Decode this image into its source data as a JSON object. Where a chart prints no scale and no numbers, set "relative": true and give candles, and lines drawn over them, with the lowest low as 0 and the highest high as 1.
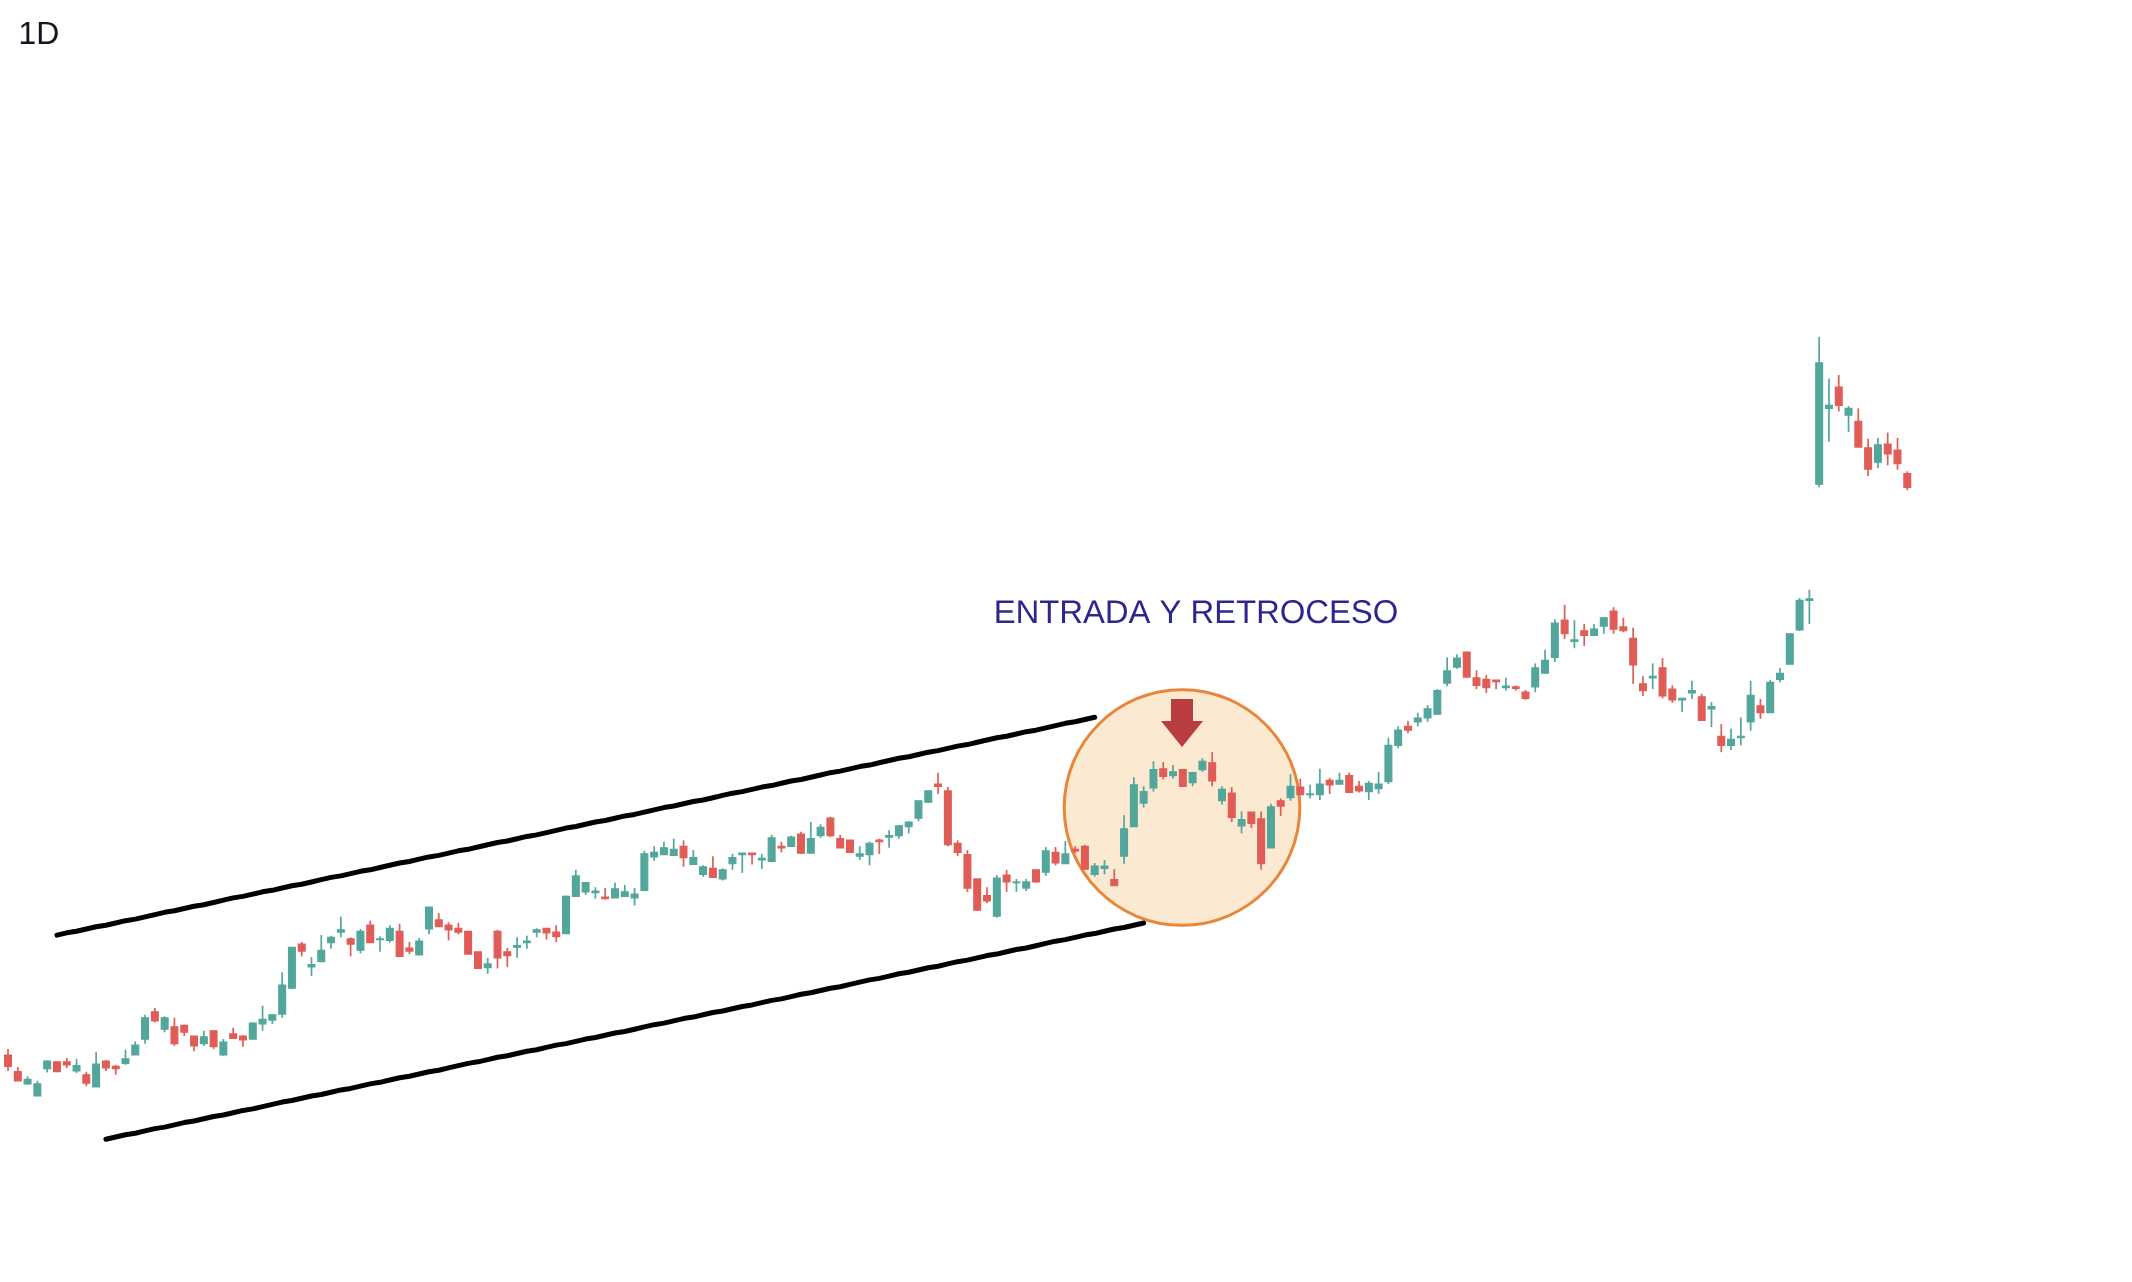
{
  "chart_data": {
    "type": "candlestick",
    "title": "1D",
    "relative": true,
    "categories": [
      null,
      null,
      null,
      null,
      null,
      null,
      null,
      null,
      null,
      null,
      null,
      null,
      null,
      null,
      null,
      null,
      null,
      null,
      null,
      null,
      null,
      null,
      null,
      null,
      null,
      null,
      null,
      null,
      null,
      null,
      null,
      null,
      null,
      null,
      null,
      null,
      null,
      null,
      null,
      null,
      null,
      null,
      null,
      null,
      null,
      null,
      null,
      null,
      null,
      null,
      null,
      null,
      null,
      null,
      null,
      null,
      null,
      null,
      null,
      null,
      null,
      null,
      null,
      null,
      null,
      null,
      null,
      null,
      null,
      null,
      null,
      null,
      null,
      null,
      null,
      null,
      null,
      null,
      null,
      null,
      null,
      null,
      null,
      null,
      null,
      null,
      null,
      null,
      null,
      null,
      null,
      null,
      null,
      null,
      null,
      null,
      null,
      null,
      null,
      null,
      null,
      null,
      null,
      null,
      null,
      null,
      null,
      null,
      null,
      null,
      null,
      null,
      null,
      null,
      null,
      null,
      null,
      null,
      null,
      null,
      null,
      null,
      null,
      null,
      null,
      null,
      null,
      null,
      null,
      null,
      null,
      null,
      null,
      null,
      null,
      null,
      null,
      null,
      null,
      null,
      null,
      null,
      null,
      null,
      null,
      null,
      null,
      null,
      null,
      null,
      null,
      null,
      null,
      null,
      null,
      null,
      null,
      null,
      null,
      null,
      null,
      null,
      null,
      null,
      null,
      null,
      null,
      null,
      null,
      null,
      null,
      null,
      null,
      null,
      null,
      null,
      null,
      null,
      null,
      null,
      null,
      null,
      null,
      null,
      null,
      null,
      null,
      null,
      null,
      null,
      null,
      null,
      null,
      null,
      null
    ],
    "ohlc": [
      [
        0.054,
        0.062,
        0.033,
        0.039
      ],
      [
        0.032,
        0.038,
        0.02,
        0.02
      ],
      [
        0.016,
        0.026,
        0.015,
        0.022
      ],
      [
        0.0,
        0.02,
        0.0,
        0.016
      ],
      [
        0.036,
        0.047,
        0.031,
        0.046
      ],
      [
        0.045,
        0.045,
        0.032,
        0.032
      ],
      [
        0.045,
        0.05,
        0.037,
        0.041
      ],
      [
        0.033,
        0.049,
        0.03,
        0.04
      ],
      [
        0.028,
        0.032,
        0.013,
        0.017
      ],
      [
        0.012,
        0.058,
        0.012,
        0.042
      ],
      [
        0.046,
        0.047,
        0.033,
        0.037
      ],
      [
        0.039,
        0.041,
        0.028,
        0.036
      ],
      [
        0.043,
        0.061,
        0.041,
        0.049
      ],
      [
        0.054,
        0.072,
        0.054,
        0.067
      ],
      [
        0.075,
        0.107,
        0.069,
        0.103
      ],
      [
        0.111,
        0.116,
        0.097,
        0.099
      ],
      [
        0.088,
        0.105,
        0.084,
        0.103
      ],
      [
        0.091,
        0.103,
        0.066,
        0.069
      ],
      [
        0.093,
        0.094,
        0.079,
        0.084
      ],
      [
        0.079,
        0.079,
        0.059,
        0.066
      ],
      [
        0.069,
        0.086,
        0.066,
        0.078
      ],
      [
        0.086,
        0.086,
        0.062,
        0.065
      ],
      [
        0.054,
        0.075,
        0.053,
        0.071
      ],
      [
        0.082,
        0.09,
        0.075,
        0.076
      ],
      [
        0.079,
        0.08,
        0.065,
        0.074
      ],
      [
        0.075,
        0.097,
        0.075,
        0.096
      ],
      [
        0.095,
        0.119,
        0.086,
        0.101
      ],
      [
        0.1,
        0.108,
        0.095,
        0.107
      ],
      [
        0.108,
        0.163,
        0.103,
        0.146
      ],
      [
        0.142,
        0.196,
        0.141,
        0.196
      ],
      [
        0.2,
        0.203,
        0.184,
        0.191
      ],
      [
        0.17,
        0.183,
        0.158,
        0.173
      ],
      [
        0.177,
        0.212,
        0.177,
        0.192
      ],
      [
        0.202,
        0.211,
        0.194,
        0.209
      ],
      [
        0.216,
        0.236,
        0.209,
        0.219
      ],
      [
        0.207,
        0.209,
        0.184,
        0.2
      ],
      [
        0.192,
        0.22,
        0.188,
        0.217
      ],
      [
        0.225,
        0.231,
        0.202,
        0.202
      ],
      [
        0.206,
        0.21,
        0.19,
        0.207
      ],
      [
        0.205,
        0.225,
        0.202,
        0.221
      ],
      [
        0.217,
        0.227,
        0.183,
        0.184
      ],
      [
        0.195,
        0.203,
        0.187,
        0.191
      ],
      [
        0.186,
        0.208,
        0.186,
        0.204
      ],
      [
        0.22,
        0.249,
        0.213,
        0.249
      ],
      [
        0.232,
        0.241,
        0.223,
        0.223
      ],
      [
        0.225,
        0.229,
        0.205,
        0.219
      ],
      [
        0.221,
        0.228,
        0.213,
        0.216
      ],
      [
        0.217,
        0.217,
        0.187,
        0.187
      ],
      [
        0.19,
        0.19,
        0.168,
        0.168
      ],
      [
        0.169,
        0.182,
        0.161,
        0.174
      ],
      [
        0.217,
        0.219,
        0.168,
        0.182
      ],
      [
        0.19,
        0.195,
        0.17,
        0.185
      ],
      [
        0.196,
        0.209,
        0.182,
        0.198
      ],
      [
        0.202,
        0.211,
        0.194,
        0.204
      ],
      [
        0.216,
        0.221,
        0.209,
        0.219
      ],
      [
        0.221,
        0.221,
        0.206,
        0.215
      ],
      [
        0.216,
        0.225,
        0.203,
        0.21
      ],
      [
        0.214,
        0.264,
        0.214,
        0.263
      ],
      [
        0.263,
        0.298,
        0.263,
        0.29
      ],
      [
        0.269,
        0.281,
        0.265,
        0.281
      ],
      [
        0.268,
        0.275,
        0.26,
        0.27
      ],
      [
        0.262,
        0.274,
        0.259,
        0.26
      ],
      [
        0.261,
        0.281,
        0.261,
        0.273
      ],
      [
        0.263,
        0.278,
        0.263,
        0.269
      ],
      [
        0.261,
        0.274,
        0.251,
        0.266
      ],
      [
        0.271,
        0.323,
        0.27,
        0.319
      ],
      [
        0.315,
        0.329,
        0.31,
        0.321
      ],
      [
        0.318,
        0.335,
        0.318,
        0.327
      ],
      [
        0.317,
        0.339,
        0.317,
        0.325
      ],
      [
        0.329,
        0.337,
        0.302,
        0.314
      ],
      [
        0.305,
        0.324,
        0.305,
        0.314
      ],
      [
        0.292,
        0.304,
        0.289,
        0.302
      ],
      [
        0.3,
        0.316,
        0.288,
        0.288
      ],
      [
        0.286,
        0.3,
        0.284,
        0.298
      ],
      [
        0.306,
        0.319,
        0.298,
        0.314
      ],
      [
        0.318,
        0.32,
        0.294,
        0.32
      ],
      [
        0.32,
        0.32,
        0.305,
        0.318
      ],
      [
        0.311,
        0.319,
        0.299,
        0.313
      ],
      [
        0.309,
        0.344,
        0.309,
        0.34
      ],
      [
        0.329,
        0.335,
        0.321,
        0.327
      ],
      [
        0.329,
        0.343,
        0.328,
        0.341
      ],
      [
        0.345,
        0.348,
        0.319,
        0.32
      ],
      [
        0.32,
        0.361,
        0.32,
        0.339
      ],
      [
        0.343,
        0.358,
        0.34,
        0.354
      ],
      [
        0.366,
        0.368,
        0.341,
        0.343
      ],
      [
        0.339,
        0.344,
        0.327,
        0.327
      ],
      [
        0.337,
        0.337,
        0.32,
        0.321
      ],
      [
        0.316,
        0.329,
        0.311,
        0.319
      ],
      [
        0.318,
        0.335,
        0.304,
        0.333
      ],
      [
        0.337,
        0.339,
        0.319,
        0.335
      ],
      [
        0.341,
        0.35,
        0.327,
        0.343
      ],
      [
        0.343,
        0.357,
        0.339,
        0.356
      ],
      [
        0.355,
        0.362,
        0.346,
        0.361
      ],
      [
        0.366,
        0.389,
        0.362,
        0.389
      ],
      [
        0.387,
        0.402,
        0.386,
        0.402
      ],
      [
        0.411,
        0.426,
        0.398,
        0.408
      ],
      [
        0.402,
        0.407,
        0.329,
        0.331
      ],
      [
        0.333,
        0.337,
        0.316,
        0.321
      ],
      [
        0.318,
        0.324,
        0.269,
        0.274
      ],
      [
        0.286,
        0.286,
        0.244,
        0.245
      ],
      [
        0.264,
        0.275,
        0.254,
        0.257
      ],
      [
        0.237,
        0.291,
        0.235,
        0.287
      ],
      [
        0.291,
        0.298,
        0.269,
        0.282
      ],
      [
        0.281,
        0.286,
        0.269,
        0.282
      ],
      [
        0.274,
        0.286,
        0.27,
        0.282
      ],
      [
        0.298,
        0.298,
        0.281,
        0.282
      ],
      [
        0.295,
        0.328,
        0.29,
        0.323
      ],
      [
        0.321,
        0.328,
        0.304,
        0.307
      ],
      [
        0.306,
        0.336,
        0.306,
        0.319
      ],
      [
        0.325,
        0.329,
        0.32,
        0.323
      ],
      [
        0.329,
        0.331,
        0.298,
        0.299
      ],
      [
        0.292,
        0.307,
        0.289,
        0.303
      ],
      [
        0.3,
        0.311,
        0.292,
        0.303
      ],
      [
        0.285,
        0.299,
        0.277,
        0.277
      ],
      [
        0.316,
        0.37,
        0.306,
        0.352
      ],
      [
        0.355,
        0.42,
        0.355,
        0.41
      ],
      [
        0.386,
        0.408,
        0.38,
        0.401
      ],
      [
        0.406,
        0.441,
        0.401,
        0.43
      ],
      [
        0.431,
        0.44,
        0.417,
        0.421
      ],
      [
        0.422,
        0.436,
        0.418,
        0.427
      ],
      [
        0.43,
        0.431,
        0.408,
        0.408
      ],
      [
        0.413,
        0.427,
        0.408,
        0.426
      ],
      [
        0.43,
        0.445,
        0.427,
        0.441
      ],
      [
        0.439,
        0.453,
        0.408,
        0.415
      ],
      [
        0.389,
        0.408,
        0.384,
        0.404
      ],
      [
        0.399,
        0.407,
        0.361,
        0.367
      ],
      [
        0.356,
        0.375,
        0.346,
        0.364
      ],
      [
        0.374,
        0.374,
        0.353,
        0.359
      ],
      [
        0.365,
        0.375,
        0.298,
        0.306
      ],
      [
        0.327,
        0.385,
        0.327,
        0.381
      ],
      [
        0.389,
        0.392,
        0.369,
        0.382
      ],
      [
        0.393,
        0.424,
        0.389,
        0.408
      ],
      [
        0.407,
        0.418,
        0.397,
        0.397
      ],
      [
        0.397,
        0.41,
        0.392,
        0.398
      ],
      [
        0.397,
        0.431,
        0.39,
        0.411
      ],
      [
        0.416,
        0.419,
        0.398,
        0.41
      ],
      [
        0.411,
        0.426,
        0.411,
        0.416
      ],
      [
        0.422,
        0.426,
        0.4,
        0.4
      ],
      [
        0.408,
        0.415,
        0.4,
        0.402
      ],
      [
        0.401,
        0.415,
        0.39,
        0.412
      ],
      [
        0.405,
        0.427,
        0.398,
        0.411
      ],
      [
        0.414,
        0.472,
        0.411,
        0.462
      ],
      [
        0.462,
        0.487,
        0.458,
        0.482
      ],
      [
        0.487,
        0.494,
        0.478,
        0.482
      ],
      [
        0.493,
        0.505,
        0.487,
        0.498
      ],
      [
        0.498,
        0.515,
        0.493,
        0.51
      ],
      [
        0.503,
        0.536,
        0.503,
        0.534
      ],
      [
        0.544,
        0.578,
        0.54,
        0.56
      ],
      [
        0.565,
        0.582,
        0.563,
        0.577
      ],
      [
        0.585,
        0.585,
        0.552,
        0.552
      ],
      [
        0.551,
        0.561,
        0.536,
        0.541
      ],
      [
        0.549,
        0.555,
        0.531,
        0.538
      ],
      [
        0.548,
        0.548,
        0.536,
        0.546
      ],
      [
        0.538,
        0.551,
        0.534,
        0.54
      ],
      [
        0.539,
        0.541,
        0.534,
        0.537
      ],
      [
        0.532,
        0.535,
        0.522,
        0.524
      ],
      [
        0.539,
        0.57,
        0.532,
        0.564
      ],
      [
        0.557,
        0.588,
        0.557,
        0.574
      ],
      [
        0.578,
        0.628,
        0.572,
        0.623
      ],
      [
        0.627,
        0.647,
        0.602,
        0.609
      ],
      [
        0.599,
        0.627,
        0.59,
        0.601
      ],
      [
        0.613,
        0.622,
        0.593,
        0.607
      ],
      [
        0.607,
        0.622,
        0.606,
        0.615
      ],
      [
        0.619,
        0.631,
        0.609,
        0.63
      ],
      [
        0.639,
        0.644,
        0.609,
        0.615
      ],
      [
        0.618,
        0.63,
        0.611,
        0.613
      ],
      [
        0.603,
        0.617,
        0.543,
        0.568
      ],
      [
        0.543,
        0.553,
        0.527,
        0.534
      ],
      [
        0.551,
        0.57,
        0.536,
        0.553
      ],
      [
        0.564,
        0.577,
        0.524,
        0.527
      ],
      [
        0.536,
        0.541,
        0.518,
        0.522
      ],
      [
        0.522,
        0.524,
        0.506,
        0.524
      ],
      [
        0.531,
        0.547,
        0.523,
        0.534
      ],
      [
        0.526,
        0.53,
        0.494,
        0.495
      ],
      [
        0.51,
        0.519,
        0.486,
        0.513
      ],
      [
        0.474,
        0.49,
        0.453,
        0.462
      ],
      [
        0.462,
        0.484,
        0.456,
        0.47
      ],
      [
        0.472,
        0.499,
        0.462,
        0.474
      ],
      [
        0.493,
        0.547,
        0.481,
        0.528
      ],
      [
        0.514,
        0.523,
        0.497,
        0.505
      ],
      [
        0.505,
        0.548,
        0.505,
        0.545
      ],
      [
        0.549,
        0.564,
        0.545,
        0.557
      ],
      [
        0.569,
        0.609,
        0.569,
        0.609
      ],
      [
        0.614,
        0.656,
        0.613,
        0.653
      ],
      [
        0.653,
        0.667,
        0.622,
        0.655
      ],
      [
        0.806,
        1.0,
        0.802,
        0.966
      ],
      [
        0.906,
        0.945,
        0.862,
        0.91
      ],
      [
        0.934,
        0.95,
        0.902,
        0.91
      ],
      [
        0.897,
        0.909,
        0.875,
        0.906
      ],
      [
        0.889,
        0.906,
        0.855,
        0.855
      ],
      [
        0.854,
        0.866,
        0.817,
        0.826
      ],
      [
        0.835,
        0.867,
        0.827,
        0.858
      ],
      [
        0.859,
        0.874,
        0.831,
        0.846
      ],
      [
        0.851,
        0.867,
        0.825,
        0.833
      ],
      [
        0.82,
        0.823,
        0.798,
        0.802
      ]
    ],
    "colors": [
      "#e05d57",
      "#e05d57",
      "#52a69b",
      "#52a69b",
      "#52a69b",
      "#e05d57",
      "#e05d57",
      "#52a69b",
      "#e05d57",
      "#52a69b",
      "#e05d57",
      "#e05d57",
      "#52a69b",
      "#52a69b",
      "#52a69b",
      "#e05d57",
      "#52a69b",
      "#e05d57",
      "#e05d57",
      "#e05d57",
      "#52a69b",
      "#e05d57",
      "#52a69b",
      "#e05d57",
      "#e05d57",
      "#52a69b",
      "#52a69b",
      "#52a69b",
      "#52a69b",
      "#52a69b",
      "#e05d57",
      "#52a69b",
      "#52a69b",
      "#52a69b",
      "#52a69b",
      "#e05d57",
      "#52a69b",
      "#e05d57",
      "#52a69b",
      "#52a69b",
      "#e05d57",
      "#e05d57",
      "#52a69b",
      "#52a69b",
      "#e05d57",
      "#e05d57",
      "#e05d57",
      "#e05d57",
      "#e05d57",
      "#52a69b",
      "#e05d57",
      "#e05d57",
      "#52a69b",
      "#52a69b",
      "#52a69b",
      "#e05d57",
      "#e05d57",
      "#52a69b",
      "#52a69b",
      "#52a69b",
      "#52a69b",
      "#e05d57",
      "#52a69b",
      "#52a69b",
      "#52a69b",
      "#52a69b",
      "#52a69b",
      "#52a69b",
      "#52a69b",
      "#e05d57",
      "#52a69b",
      "#52a69b",
      "#e05d57",
      "#52a69b",
      "#52a69b",
      "#52a69b",
      "#e05d57",
      "#52a69b",
      "#52a69b",
      "#e05d57",
      "#52a69b",
      "#e05d57",
      "#52a69b",
      "#52a69b",
      "#e05d57",
      "#e05d57",
      "#e05d57",
      "#52a69b",
      "#52a69b",
      "#e05d57",
      "#52a69b",
      "#52a69b",
      "#52a69b",
      "#52a69b",
      "#52a69b",
      "#e05d57",
      "#e05d57",
      "#e05d57",
      "#e05d57",
      "#e05d57",
      "#e05d57",
      "#52a69b",
      "#e05d57",
      "#52a69b",
      "#52a69b",
      "#e05d57",
      "#52a69b",
      "#e05d57",
      "#52a69b",
      "#e05d57",
      "#e05d57",
      "#52a69b",
      "#52a69b",
      "#e05d57",
      "#52a69b",
      "#52a69b",
      "#52a69b",
      "#52a69b",
      "#e05d57",
      "#52a69b",
      "#e05d57",
      "#52a69b",
      "#52a69b",
      "#e05d57",
      "#52a69b",
      "#e05d57",
      "#52a69b",
      "#e05d57",
      "#e05d57",
      "#52a69b",
      "#e05d57",
      "#52a69b",
      "#e05d57",
      "#52a69b",
      "#52a69b",
      "#e05d57",
      "#52a69b",
      "#e05d57",
      "#e05d57",
      "#52a69b",
      "#52a69b",
      "#52a69b",
      "#52a69b",
      "#e05d57",
      "#52a69b",
      "#52a69b",
      "#52a69b",
      "#52a69b",
      "#52a69b",
      "#e05d57",
      "#e05d57",
      "#e05d57",
      "#e05d57",
      "#52a69b",
      "#e05d57",
      "#e05d57",
      "#52a69b",
      "#52a69b",
      "#52a69b",
      "#e05d57",
      "#52a69b",
      "#e05d57",
      "#52a69b",
      "#52a69b",
      "#e05d57",
      "#e05d57",
      "#e05d57",
      "#e05d57",
      "#52a69b",
      "#e05d57",
      "#e05d57",
      "#52a69b",
      "#52a69b",
      "#e05d57",
      "#52a69b",
      "#e05d57",
      "#52a69b",
      "#52a69b",
      "#52a69b",
      "#e05d57",
      "#52a69b",
      "#52a69b",
      "#52a69b",
      "#52a69b",
      "#52a69b",
      "#52a69b",
      "#52a69b",
      "#e05d57",
      "#52a69b",
      "#e05d57",
      "#e05d57",
      "#52a69b",
      "#e05d57",
      "#e05d57",
      "#e05d57"
    ],
    "series": [
      {
        "type": "line",
        "color": "#000000",
        "values": [
          null,
          null,
          null,
          null,
          null,
          0.212,
          0.215,
          0.217,
          0.22,
          0.223,
          0.225,
          0.228,
          0.231,
          0.233,
          0.236,
          0.239,
          0.242,
          0.244,
          0.247,
          0.25,
          0.252,
          0.255,
          0.258,
          0.261,
          0.263,
          0.266,
          0.269,
          0.271,
          0.274,
          0.277,
          0.279,
          0.282,
          0.285,
          0.288,
          0.29,
          0.293,
          0.296,
          0.298,
          0.301,
          0.304,
          0.307,
          0.309,
          0.312,
          0.315,
          0.317,
          0.32,
          0.323,
          0.325,
          0.328,
          0.331,
          0.334,
          0.336,
          0.339,
          0.342,
          0.344,
          0.347,
          0.35,
          0.353,
          0.355,
          0.358,
          0.361,
          0.363,
          0.366,
          0.369,
          0.371,
          0.374,
          0.377,
          0.38,
          0.382,
          0.385,
          0.388,
          0.39,
          0.393,
          0.396,
          0.399,
          0.401,
          0.404,
          0.407,
          0.409,
          0.412,
          0.415,
          0.417,
          0.42,
          0.423,
          0.426,
          0.428,
          0.431,
          0.434,
          0.436,
          0.439,
          0.442,
          0.445,
          0.447,
          0.45,
          0.453,
          0.455,
          0.458,
          0.461,
          0.463,
          0.466,
          0.469,
          0.472,
          0.474,
          0.477,
          0.48,
          0.482,
          0.485,
          0.488,
          0.491,
          0.493,
          0.496,
          0.499,
          null,
          null,
          null,
          null,
          null,
          null,
          null,
          null,
          null,
          null,
          null,
          null,
          null,
          null,
          null,
          null,
          null,
          null,
          null,
          null,
          null,
          null,
          null,
          null,
          null,
          null,
          null,
          null,
          null,
          null,
          null,
          null,
          null,
          null,
          null,
          null,
          null,
          null,
          null,
          null,
          null,
          null,
          null,
          null,
          null,
          null,
          null,
          null,
          null,
          null,
          null,
          null,
          null,
          null,
          null,
          null,
          null,
          null,
          null,
          null,
          null,
          null,
          null,
          null,
          null,
          null,
          null,
          null,
          null,
          null,
          null,
          null,
          null,
          null,
          null,
          null,
          null,
          null,
          null,
          null,
          null,
          null,
          null
        ]
      },
      {
        "type": "line",
        "color": "#000000",
        "values": [
          null,
          null,
          null,
          null,
          null,
          null,
          null,
          null,
          null,
          null,
          -0.057,
          -0.054,
          -0.051,
          -0.049,
          -0.046,
          -0.043,
          -0.041,
          -0.038,
          -0.035,
          -0.033,
          -0.03,
          -0.027,
          -0.025,
          -0.022,
          -0.019,
          -0.017,
          -0.014,
          -0.011,
          -0.008,
          -0.006,
          -0.003,
          0.0,
          0.002,
          0.005,
          0.008,
          0.01,
          0.013,
          0.016,
          0.018,
          0.021,
          0.024,
          0.026,
          0.029,
          0.032,
          0.034,
          0.037,
          0.04,
          0.043,
          0.045,
          0.048,
          0.051,
          0.053,
          0.056,
          0.059,
          0.061,
          0.064,
          0.067,
          0.069,
          0.072,
          0.075,
          0.077,
          0.08,
          0.083,
          0.085,
          0.088,
          0.091,
          0.094,
          0.096,
          0.099,
          0.102,
          0.104,
          0.107,
          0.11,
          0.112,
          0.115,
          0.118,
          0.12,
          0.123,
          0.126,
          0.128,
          0.131,
          0.134,
          0.136,
          0.139,
          0.142,
          0.144,
          0.147,
          0.15,
          0.153,
          0.155,
          0.158,
          0.161,
          0.163,
          0.166,
          0.169,
          0.171,
          0.174,
          0.177,
          0.179,
          0.182,
          0.185,
          0.187,
          0.19,
          0.193,
          0.195,
          0.198,
          0.201,
          0.204,
          0.206,
          0.209,
          0.212,
          0.214,
          0.217,
          0.22,
          0.222,
          0.225,
          0.228,
          null,
          null,
          null,
          null,
          null,
          null,
          null,
          null,
          null,
          null,
          null,
          null,
          null,
          null,
          null,
          null,
          null,
          null,
          null,
          null,
          null,
          null,
          null,
          null,
          null,
          null,
          null,
          null,
          null,
          null,
          null,
          null,
          null,
          null,
          null,
          null,
          null,
          null,
          null,
          null,
          null,
          null,
          null,
          null,
          null,
          null,
          null,
          null,
          null,
          null,
          null,
          null,
          null,
          null,
          null,
          null,
          null,
          null,
          null,
          null,
          null,
          null,
          null,
          null,
          null,
          null,
          null,
          null,
          null,
          null,
          null,
          null,
          null,
          null,
          null,
          null,
          null,
          null
        ]
      }
    ],
    "annotations": [
      "ENTRADA Y RETROCESO"
    ]
  }
}
